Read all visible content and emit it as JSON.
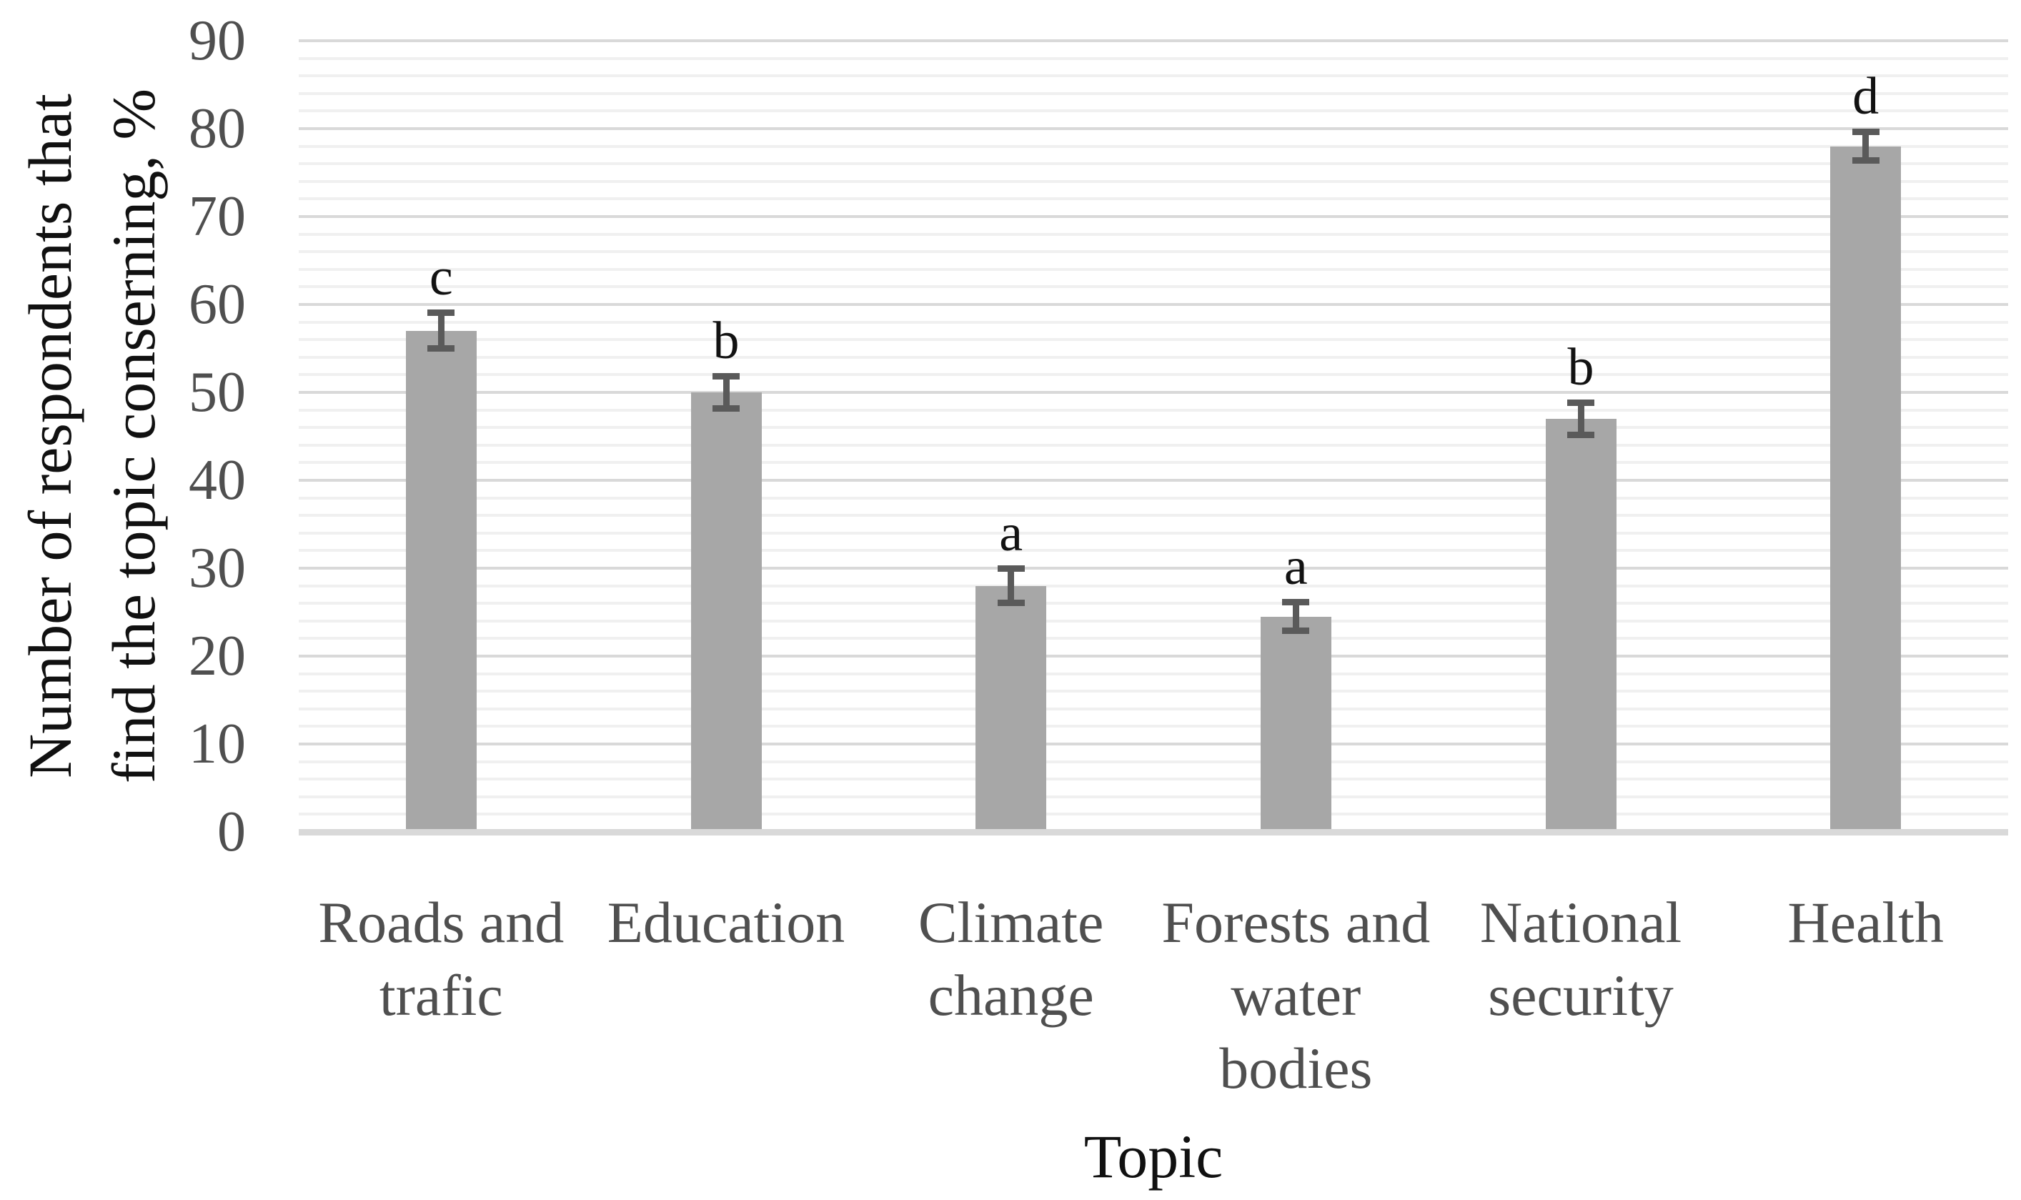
{
  "figure": {
    "x_axis_title": "Topic",
    "y_axis_title_line1": "Number of respondents that",
    "y_axis_title_line2": "find the topic conserning, %"
  },
  "chart_data": {
    "type": "bar",
    "title": "",
    "xlabel": "Topic",
    "ylabel": "Number of respondents that find the topic conserning, %",
    "categories": [
      "Roads and trafic",
      "Education",
      "Climate change",
      "Forests and water bodies",
      "National security",
      "Health"
    ],
    "categories_wrapped": [
      [
        "Roads and",
        "trafic"
      ],
      [
        "Education"
      ],
      [
        "Climate",
        "change"
      ],
      [
        "Forests and",
        "water",
        "bodies"
      ],
      [
        "National",
        "security"
      ],
      [
        "Health"
      ]
    ],
    "values": [
      57,
      50,
      28,
      24.5,
      47,
      78
    ],
    "error_bars": [
      2.4,
      2.2,
      2.3,
      2.0,
      2.2,
      2.0
    ],
    "significance_letters": [
      "c",
      "b",
      "a",
      "a",
      "b",
      "d"
    ],
    "y_ticks": [
      0,
      10,
      20,
      30,
      40,
      50,
      60,
      70,
      80,
      90
    ],
    "ylim": [
      0,
      90
    ],
    "y_major_step": 10,
    "y_minor_step": 2,
    "grid": "horizontal, major and minor, on",
    "legend": "none",
    "colors": {
      "bar_fill": "#a7a7a7",
      "error_bar": "#5a5a5a",
      "grid_major": "#d9d9d9",
      "grid_minor": "#f0f0f0",
      "axis_line": "#d9d9d9",
      "tick_label_text": "#4f4f4f",
      "category_label_text": "#4f4f4f",
      "axis_title_text": "#111111",
      "significance_letter_text": "#121212",
      "background": "#ffffff"
    }
  }
}
